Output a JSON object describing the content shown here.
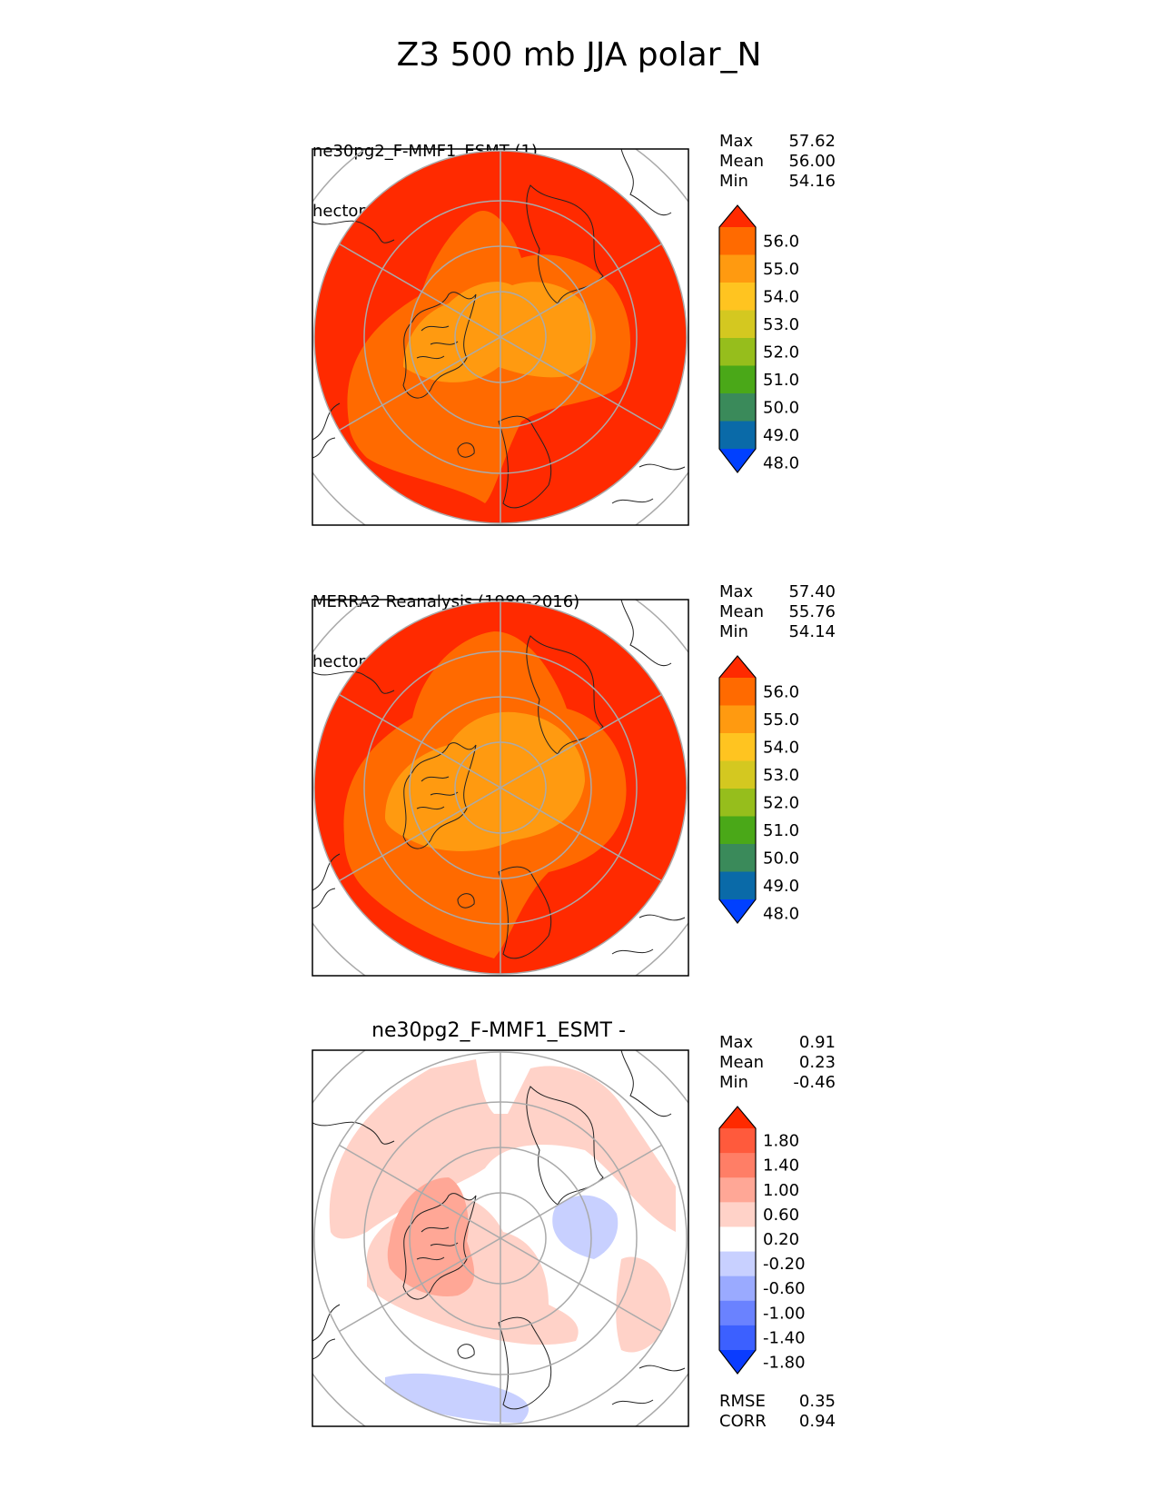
{
  "title": "Z3 500 mb JJA polar_N",
  "panels": [
    {
      "id": "test",
      "title_lines": [
        "ne30pg2_F-MMF1_ESMT (1)",
        "hectometer"
      ],
      "stats": [
        {
          "label": "Max",
          "value": "57.62"
        },
        {
          "label": "Mean",
          "value": "56.00"
        },
        {
          "label": "Min",
          "value": "54.16"
        }
      ],
      "colorbar": {
        "ticks": [
          "56.0",
          "55.0",
          "54.0",
          "53.0",
          "52.0",
          "51.0",
          "50.0",
          "49.0",
          "48.0"
        ],
        "colors": [
          "#ff2a00",
          "#ff6a00",
          "#ff9a10",
          "#ffc420",
          "#d4c820",
          "#96be1c",
          "#4aa818",
          "#3a8a5a",
          "#0a6aa8",
          "#0040ff"
        ]
      }
    },
    {
      "id": "reference",
      "title_lines": [
        "MERRA2 Reanalysis (1980-2016)",
        "hectometer"
      ],
      "stats": [
        {
          "label": "Max",
          "value": "57.40"
        },
        {
          "label": "Mean",
          "value": "55.76"
        },
        {
          "label": "Min",
          "value": "54.14"
        }
      ],
      "colorbar": {
        "ticks": [
          "56.0",
          "55.0",
          "54.0",
          "53.0",
          "52.0",
          "51.0",
          "50.0",
          "49.0",
          "48.0"
        ],
        "colors": [
          "#ff2a00",
          "#ff6a00",
          "#ff9a10",
          "#ffc420",
          "#d4c820",
          "#96be1c",
          "#4aa818",
          "#3a8a5a",
          "#0a6aa8",
          "#0040ff"
        ]
      }
    },
    {
      "id": "difference",
      "title_center": "ne30pg2_F-MMF1_ESMT -",
      "stats": [
        {
          "label": "Max",
          "value": "0.91"
        },
        {
          "label": "Mean",
          "value": "0.23"
        },
        {
          "label": "Min",
          "value": "-0.46"
        }
      ],
      "extra_stats": [
        {
          "label": "RMSE",
          "value": "0.35"
        },
        {
          "label": "CORR",
          "value": "0.94"
        }
      ],
      "colorbar": {
        "ticks": [
          "1.80",
          "1.40",
          "1.00",
          "0.60",
          "0.20",
          "-0.20",
          "-0.60",
          "-1.00",
          "-1.40",
          "-1.80"
        ],
        "colors": [
          "#ff2a00",
          "#ff5a3c",
          "#ff7e66",
          "#ffa796",
          "#ffd2c8",
          "#ffffff",
          "#c8d0ff",
          "#9aaaff",
          "#6a82ff",
          "#3c60ff",
          "#0a3cff"
        ]
      }
    }
  ]
}
